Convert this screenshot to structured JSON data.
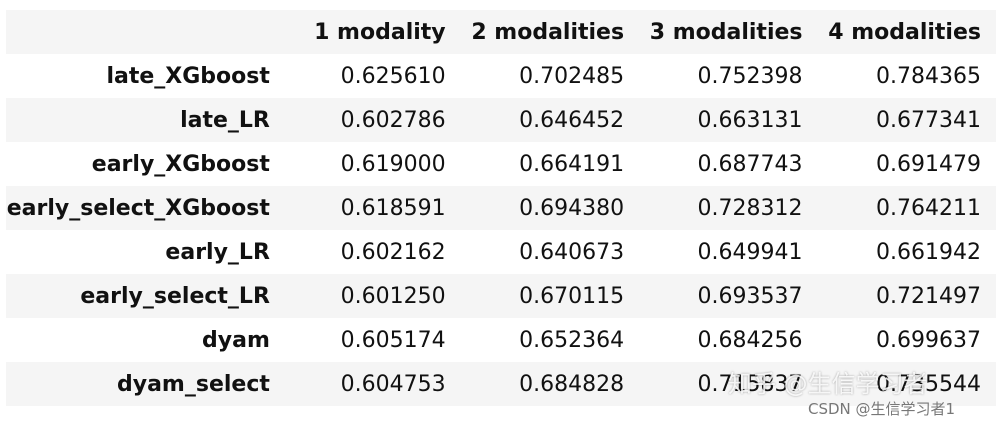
{
  "table": {
    "columns": [
      "1 modality",
      "2 modalities",
      "3 modalities",
      "4 modalities"
    ],
    "rows": [
      [
        "late_XGboost",
        "0.625610",
        "0.702485",
        "0.752398",
        "0.784365"
      ],
      [
        "late_LR",
        "0.602786",
        "0.646452",
        "0.663131",
        "0.677341"
      ],
      [
        "early_XGboost",
        "0.619000",
        "0.664191",
        "0.687743",
        "0.691479"
      ],
      [
        "early_select_XGboost",
        "0.618591",
        "0.694380",
        "0.728312",
        "0.764211"
      ],
      [
        "early_LR",
        "0.602162",
        "0.640673",
        "0.649941",
        "0.661942"
      ],
      [
        "early_select_LR",
        "0.601250",
        "0.670115",
        "0.693537",
        "0.721497"
      ],
      [
        "dyam",
        "0.605174",
        "0.652364",
        "0.684256",
        "0.699637"
      ],
      [
        "dyam_select",
        "0.604753",
        "0.684828",
        "0.715837",
        "0.735544"
      ]
    ]
  },
  "watermarks": [
    "知乎 @生信学习者",
    "CSDN @生信学习者1"
  ]
}
